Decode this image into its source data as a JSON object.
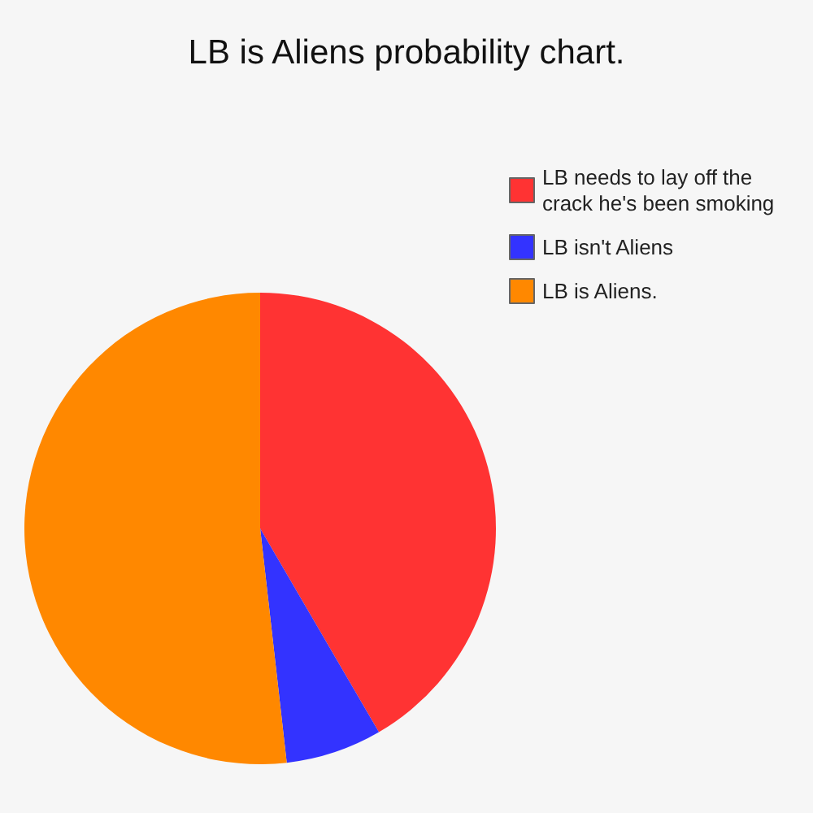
{
  "chart_data": {
    "type": "pie",
    "title": "LB is Aliens probability chart.",
    "categories": [
      "LB needs to lay off the crack he's been smoking",
      "LB isn't Aliens",
      "LB is Aliens."
    ],
    "values": [
      41.6,
      6.6,
      51.8
    ],
    "colors": [
      "#ff3333",
      "#3333ff",
      "#ff8800"
    ],
    "legend": "top right"
  }
}
